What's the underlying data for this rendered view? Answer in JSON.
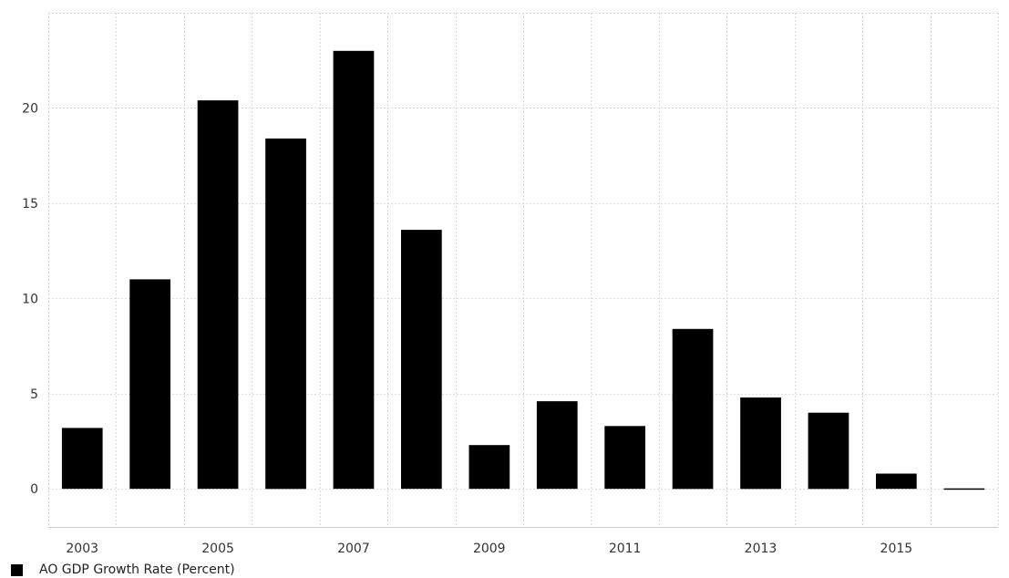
{
  "chart_data": {
    "type": "bar",
    "categories": [
      "2003",
      "2004",
      "2005",
      "2006",
      "2007",
      "2008",
      "2009",
      "2010",
      "2011",
      "2012",
      "2013",
      "2014",
      "2015",
      "2016"
    ],
    "values": [
      3.2,
      11.0,
      20.4,
      18.4,
      23.0,
      13.6,
      2.3,
      4.6,
      3.3,
      8.4,
      4.8,
      4.0,
      0.8,
      -0.05
    ],
    "x_tick_labels": [
      "2003",
      "2005",
      "2007",
      "2009",
      "2011",
      "2013",
      "2015"
    ],
    "y_ticks": [
      0,
      5,
      10,
      15,
      20
    ],
    "ylim": [
      -2,
      25
    ],
    "grid": true,
    "legend_position": "bottom-left",
    "bar_color": "#000000",
    "series": [
      {
        "name": "AO GDP Growth Rate (Percent)",
        "values": [
          3.2,
          11.0,
          20.4,
          18.4,
          23.0,
          13.6,
          2.3,
          4.6,
          3.3,
          8.4,
          4.8,
          4.0,
          0.8,
          -0.05
        ]
      }
    ]
  },
  "legend": {
    "label": "AO GDP Growth Rate (Percent)"
  }
}
